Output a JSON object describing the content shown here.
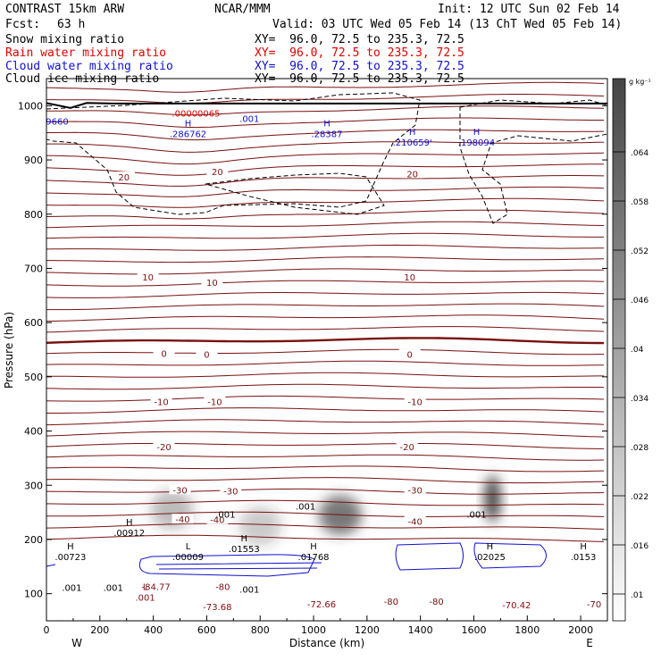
{
  "header": {
    "model": "CONTRAST 15km ARW",
    "center": "NCAR/MMM",
    "init": "Init: 12 UTC Sun 02 Feb 14",
    "fcst_label": "Fcst:",
    "fcst_value": "63 h",
    "valid": "Valid: 03 UTC Wed 05 Feb 14 (13 ChT Wed 05 Feb 14)"
  },
  "fields": [
    {
      "name": "Snow mixing ratio",
      "xy": "XY=  96.0, 72.5 to 235.3, 72.5",
      "color": "#000000"
    },
    {
      "name": "Rain water mixing ratio",
      "xy": "XY=  96.0, 72.5 to 235.3, 72.5",
      "color": "#e00000"
    },
    {
      "name": "Cloud water mixing ratio",
      "xy": "XY=  96.0, 72.5 to 235.3, 72.5",
      "color": "#1010cc"
    },
    {
      "name": "Cloud ice mixing ratio",
      "xy": "XY=  96.0, 72.5 to 235.3, 72.5",
      "color": "#000000"
    }
  ],
  "chart_data": {
    "type": "cross-section",
    "xlabel": "Distance (km)",
    "ylabel": "Pressure (hPa)",
    "xlim": [
      0,
      2100
    ],
    "ylim": [
      1050,
      50
    ],
    "xticks": [
      0,
      200,
      400,
      600,
      800,
      1000,
      1200,
      1400,
      1600,
      1800,
      2000
    ],
    "yticks": [
      100,
      200,
      300,
      400,
      500,
      600,
      700,
      800,
      900,
      1000
    ],
    "west_label": "W",
    "east_label": "E",
    "colorbar": {
      "unit": "g kg⁻¹",
      "labels": [
        ".064",
        ".058",
        ".052",
        ".046",
        ".04",
        ".034",
        ".028",
        ".022",
        ".016",
        ".01"
      ],
      "range": [
        0.01,
        0.07
      ]
    },
    "temperature_labels": [
      {
        "text": "-73.68",
        "x": 640,
        "p": 75
      },
      {
        "text": "-72.66",
        "x": 1030,
        "p": 80
      },
      {
        "text": "-80",
        "x": 1290,
        "p": 85
      },
      {
        "text": "-80",
        "x": 1460,
        "p": 85
      },
      {
        "text": "-70.42",
        "x": 1760,
        "p": 78
      },
      {
        "text": "-70",
        "x": 2050,
        "p": 80
      },
      {
        "text": "-84.77",
        "x": 410,
        "p": 112
      },
      {
        "text": "-80",
        "x": 660,
        "p": 112
      },
      {
        "text": "-40",
        "x": 510,
        "p": 236
      },
      {
        "text": "-40",
        "x": 640,
        "p": 235
      },
      {
        "text": "-40",
        "x": 1380,
        "p": 232
      },
      {
        "text": "-30",
        "x": 500,
        "p": 290
      },
      {
        "text": "-30",
        "x": 690,
        "p": 288
      },
      {
        "text": "-30",
        "x": 1380,
        "p": 290
      },
      {
        "text": "-20",
        "x": 440,
        "p": 370
      },
      {
        "text": "-20",
        "x": 1350,
        "p": 370
      },
      {
        "text": "-10",
        "x": 430,
        "p": 453
      },
      {
        "text": "-10",
        "x": 630,
        "p": 453
      },
      {
        "text": "-10",
        "x": 1380,
        "p": 453
      },
      {
        "text": "0",
        "x": 440,
        "p": 542
      },
      {
        "text": "0",
        "x": 600,
        "p": 540
      },
      {
        "text": "0",
        "x": 1360,
        "p": 540
      },
      {
        "text": "10",
        "x": 380,
        "p": 683
      },
      {
        "text": "10",
        "x": 620,
        "p": 673
      },
      {
        "text": "10",
        "x": 1360,
        "p": 683
      },
      {
        "text": "20",
        "x": 290,
        "p": 867
      },
      {
        "text": "20",
        "x": 640,
        "p": 877
      },
      {
        "text": "20",
        "x": 1370,
        "p": 873
      }
    ],
    "extrema": [
      {
        "mark": "L",
        "x": 370,
        "p": 100,
        "value": ".001"
      },
      {
        "mark": "H",
        "x": 90,
        "p": 175,
        "value": ".00723"
      },
      {
        "mark": "L",
        "x": 530,
        "p": 175,
        "value": ".00009"
      },
      {
        "mark": "H",
        "x": 740,
        "p": 190,
        "value": ".01553"
      },
      {
        "mark": "H",
        "x": 1000,
        "p": 175,
        "value": ".01768"
      },
      {
        "mark": "H",
        "x": 310,
        "p": 220,
        "value": ".00912"
      },
      {
        "mark": "H",
        "x": 1660,
        "p": 175,
        "value": ".02025"
      },
      {
        "mark": "H",
        "x": 2010,
        "p": 175,
        "value": ".0153"
      },
      {
        "mark": "H",
        "x": 530,
        "p": 955,
        "value": ".286762"
      },
      {
        "mark": "H",
        "x": 1050,
        "p": 955,
        "value": ".28387"
      },
      {
        "mark": "H",
        "x": 1370,
        "p": 940,
        "value": ".210659'"
      },
      {
        "mark": "H",
        "x": 1610,
        "p": 940,
        "value": ".198094"
      }
    ],
    "contour_value_labels": [
      {
        "text": ".001",
        "x": 95,
        "p": 110,
        "color": "#000000"
      },
      {
        "text": ".001",
        "x": 250,
        "p": 110,
        "color": "#000000"
      },
      {
        "text": ".001",
        "x": 760,
        "p": 107,
        "color": "#000000"
      },
      {
        "text": ".001",
        "x": 670,
        "p": 245,
        "color": "#000000"
      },
      {
        "text": ".001",
        "x": 970,
        "p": 260,
        "color": "#000000"
      },
      {
        "text": ".001",
        "x": 1610,
        "p": 245,
        "color": "#000000"
      },
      {
        "text": ".001",
        "x": 760,
        "p": 975,
        "color": "#1010cc"
      },
      {
        "text": "9660",
        "x": 40,
        "p": 970,
        "color": "#1010cc"
      },
      {
        "text": ".00000065",
        "x": 560,
        "p": 985,
        "color": "#e00000"
      }
    ],
    "shaded_maxima_g_per_kg": [
      {
        "x": 470,
        "p": 255,
        "value": 0.025
      },
      {
        "x": 800,
        "p": 225,
        "value": 0.02
      },
      {
        "x": 1100,
        "p": 245,
        "value": 0.045
      },
      {
        "x": 1670,
        "p": 275,
        "value": 0.06
      }
    ],
    "surface": {
      "x": [
        0,
        90,
        150,
        250,
        2100
      ],
      "p": [
        1005,
        996,
        1005,
        1004,
        1004
      ]
    }
  }
}
